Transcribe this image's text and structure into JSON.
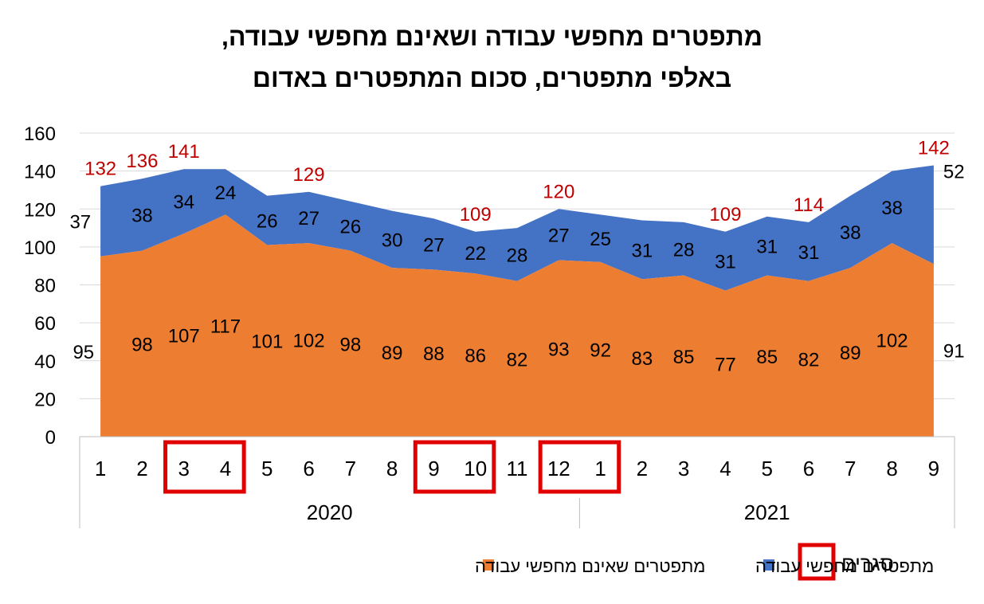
{
  "chart_data": {
    "type": "area",
    "title_lines": [
      "מתפטרים מחפשי עבודה ושאינם מחפשי עבודה,",
      "באלפי מתפטרים, סכום המתפטרים באדום"
    ],
    "x": [
      "1",
      "2",
      "3",
      "4",
      "5",
      "6",
      "7",
      "8",
      "9",
      "10",
      "11",
      "12",
      "1",
      "2",
      "3",
      "4",
      "5",
      "6",
      "7",
      "8",
      "9"
    ],
    "years": [
      {
        "label": "2020",
        "months": 12
      },
      {
        "label": "2021",
        "months": 9
      }
    ],
    "ylim": [
      0,
      160
    ],
    "yticks": [
      0,
      20,
      40,
      60,
      80,
      100,
      120,
      140,
      160
    ],
    "series": [
      {
        "name": "מתפטרים שאינם מחפשי עבודה",
        "color": "#ED7D31",
        "values": [
          95,
          98,
          107,
          117,
          101,
          102,
          98,
          89,
          88,
          86,
          82,
          93,
          92,
          83,
          85,
          77,
          85,
          82,
          89,
          102,
          91
        ]
      },
      {
        "name": "מתפטרים מחפשי עבודה",
        "color": "#4472C4",
        "values": [
          37,
          38,
          34,
          24,
          26,
          27,
          26,
          30,
          27,
          22,
          28,
          27,
          25,
          31,
          28,
          31,
          31,
          31,
          38,
          38,
          52
        ]
      }
    ],
    "totals": [
      {
        "index": 0,
        "value": "132"
      },
      {
        "index": 1,
        "value": "136"
      },
      {
        "index": 2,
        "value": "141"
      },
      {
        "index": 5,
        "value": "129"
      },
      {
        "index": 9,
        "value": "109"
      },
      {
        "index": 11,
        "value": "120"
      },
      {
        "index": 15,
        "value": "109"
      },
      {
        "index": 17,
        "value": "114"
      },
      {
        "index": 20,
        "value": "142"
      }
    ],
    "total_color": "#C00000",
    "lockdown_groups": [
      [
        2,
        3
      ],
      [
        8,
        9
      ],
      [
        11,
        12
      ]
    ],
    "lockdown_color": "#E00000",
    "grid": true,
    "legend": {
      "position": "bottom",
      "items": [
        {
          "label": "סגרים",
          "type": "box",
          "color": "#E00000"
        },
        {
          "label": "מתפטרים מחפשי עבודה",
          "type": "square",
          "color": "#4472C4"
        },
        {
          "label": "מתפטרים שאינם מחפשי עבודה",
          "type": "square",
          "color": "#ED7D31"
        }
      ]
    }
  }
}
